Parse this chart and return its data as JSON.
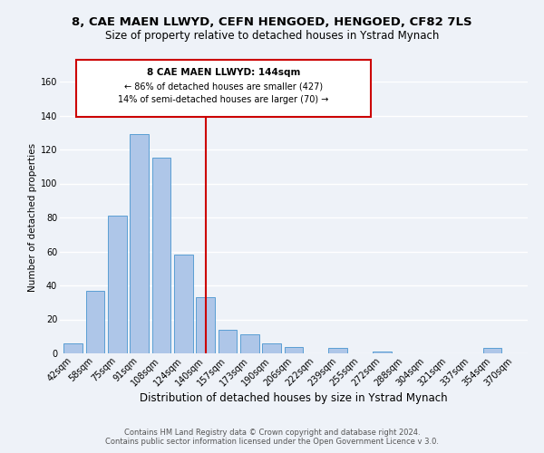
{
  "title": "8, CAE MAEN LLWYD, CEFN HENGOED, HENGOED, CF82 7LS",
  "subtitle": "Size of property relative to detached houses in Ystrad Mynach",
  "xlabel": "Distribution of detached houses by size in Ystrad Mynach",
  "ylabel": "Number of detached properties",
  "categories": [
    "42sqm",
    "58sqm",
    "75sqm",
    "91sqm",
    "108sqm",
    "124sqm",
    "140sqm",
    "157sqm",
    "173sqm",
    "190sqm",
    "206sqm",
    "222sqm",
    "239sqm",
    "255sqm",
    "272sqm",
    "288sqm",
    "304sqm",
    "321sqm",
    "337sqm",
    "354sqm",
    "370sqm"
  ],
  "values": [
    6,
    37,
    81,
    129,
    115,
    58,
    33,
    14,
    11,
    6,
    4,
    0,
    3,
    0,
    1,
    0,
    0,
    0,
    0,
    3,
    0
  ],
  "bar_color": "#aec6e8",
  "bar_edge_color": "#5a9fd4",
  "vline_x_index": 6,
  "vline_color": "#cc0000",
  "annotation_title": "8 CAE MAEN LLWYD: 144sqm",
  "annotation_line1": "← 86% of detached houses are smaller (427)",
  "annotation_line2": "14% of semi-detached houses are larger (70) →",
  "annotation_box_color": "#ffffff",
  "annotation_box_edge": "#cc0000",
  "ylim": [
    0,
    160
  ],
  "footer1": "Contains HM Land Registry data © Crown copyright and database right 2024.",
  "footer2": "Contains public sector information licensed under the Open Government Licence v 3.0.",
  "background_color": "#eef2f8",
  "grid_color": "#ffffff",
  "title_fontsize": 9.5,
  "subtitle_fontsize": 8.5,
  "axis_label_fontsize": 8.5,
  "tick_fontsize": 7,
  "footer_fontsize": 6,
  "ylabel_fontsize": 7.5
}
